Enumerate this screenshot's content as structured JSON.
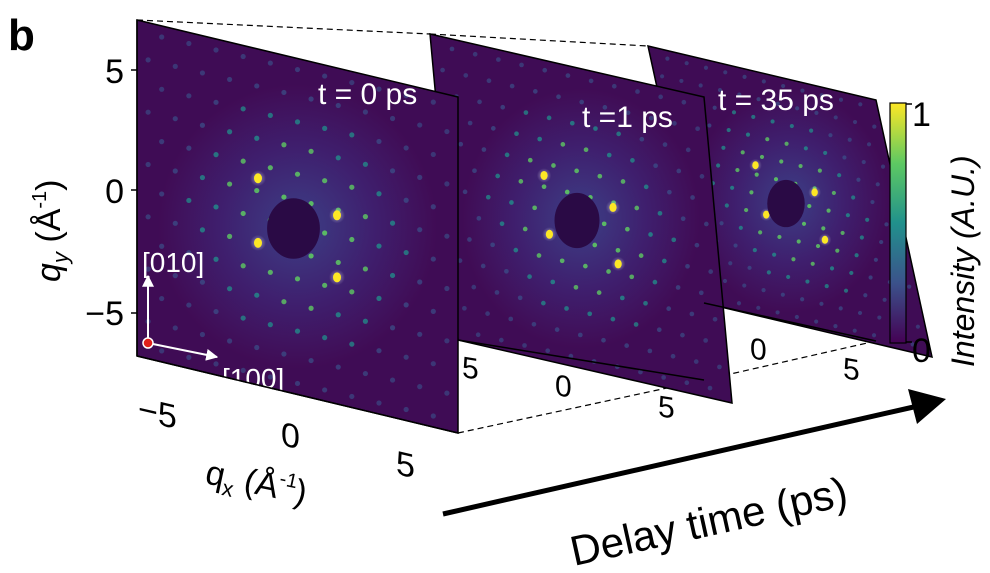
{
  "panel_label": "b",
  "colors": {
    "background": "#3f0c55",
    "colormap": [
      "#440154",
      "#3b528b",
      "#21918c",
      "#5ec962",
      "#fde725"
    ],
    "beam_stop": "#2a0a45",
    "origin_dot": "#e0201b"
  },
  "chart_data": {
    "type": "heatmap",
    "subtype": "stacked electron diffraction patterns vs. delay time",
    "title": "",
    "xlabel": {
      "base": "q",
      "sub": "x",
      "unit_pre": " (Å",
      "unit_sup": "-1",
      "unit_post": ")"
    },
    "ylabel": {
      "base": "q",
      "sub": "y",
      "unit_pre": " (Å",
      "unit_sup": "-1",
      "unit_post": ")"
    },
    "delay_axis_label": "Delay time (ps)",
    "xlim": [
      -6.5,
      6.5
    ],
    "ylim": [
      -6.5,
      6.5
    ],
    "xticks": [
      -5,
      0,
      5
    ],
    "yticks": [
      5,
      0,
      -5
    ],
    "xtick_labels": [
      "−5",
      "0",
      "5"
    ],
    "ytick_labels": [
      "5",
      "0",
      "−5"
    ],
    "frames": [
      {
        "label": "t = 0 ps",
        "time_ps": 0
      },
      {
        "label": "t =1 ps",
        "time_ps": 1
      },
      {
        "label": "t = 35 ps",
        "time_ps": 35
      }
    ],
    "direction_labels": {
      "vertical": "[010]",
      "horizontal": "[100]"
    },
    "colorbar": {
      "label": "Intensity (A.U.)",
      "min": 0,
      "max": 1,
      "tick_labels": [
        "0",
        "1"
      ]
    },
    "bright_peaks": [
      [
        -1.6,
        1.5
      ],
      [
        1.6,
        0.8
      ],
      [
        -1.6,
        -1.0
      ],
      [
        1.6,
        -1.6
      ]
    ],
    "lattice_step": 1.1,
    "grid": false
  }
}
